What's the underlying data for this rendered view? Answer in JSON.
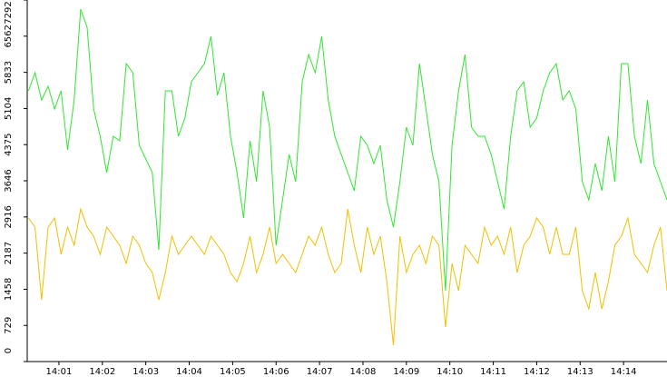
{
  "chart_data": {
    "type": "line",
    "x": [
      0.3,
      0.45,
      0.6,
      0.75,
      0.9,
      1.05,
      1.2,
      1.35,
      1.5,
      1.65,
      1.8,
      1.95,
      2.1,
      2.25,
      2.4,
      2.55,
      2.7,
      2.85,
      3.0,
      3.15,
      3.3,
      3.45,
      3.6,
      3.75,
      3.9,
      4.05,
      4.2,
      4.35,
      4.5,
      4.65,
      4.8,
      4.95,
      5.1,
      5.25,
      5.4,
      5.55,
      5.7,
      5.85,
      6.0,
      6.15,
      6.3,
      6.45,
      6.6,
      6.75,
      6.9,
      7.05,
      7.2,
      7.35,
      7.5,
      7.65,
      7.8,
      7.95,
      8.1,
      8.25,
      8.4,
      8.55,
      8.7,
      8.85,
      9.0,
      9.15,
      9.3,
      9.45,
      9.6,
      9.75,
      9.9,
      10.05,
      10.2,
      10.35,
      10.5,
      10.65,
      10.8,
      10.95,
      11.1,
      11.25,
      11.4,
      11.55,
      11.7,
      11.85,
      12.0,
      12.15,
      12.3,
      12.45,
      12.6,
      12.75,
      12.9,
      13.05,
      13.2,
      13.35,
      13.5,
      13.65,
      13.8,
      13.95,
      14.1,
      14.25,
      14.4,
      14.55,
      14.7,
      14.85,
      15.0
    ],
    "series": [
      {
        "color": "#2ee82e",
        "values": [
          5459,
          5826,
          5276,
          5551,
          5093,
          5459,
          4269,
          5276,
          7108,
          6742,
          5093,
          4543,
          3810,
          4543,
          4452,
          6009,
          5826,
          4360,
          4085,
          3810,
          2253,
          5459,
          5459,
          4543,
          4910,
          5643,
          5826,
          6009,
          6559,
          5368,
          5826,
          4543,
          3810,
          2895,
          4452,
          3627,
          5459,
          4727,
          2345,
          3261,
          4177,
          3627,
          5643,
          6192,
          5826,
          6559,
          5276,
          4543,
          4177,
          3810,
          3444,
          4543,
          4360,
          3994,
          4360,
          3261,
          2711,
          3627,
          4727,
          4360,
          6009,
          5093,
          4177,
          3627,
          1429,
          4360,
          5459,
          6192,
          4727,
          4543,
          4543,
          4177,
          3627,
          3078,
          4543,
          5459,
          5643,
          4727,
          4910,
          5459,
          5826,
          6009,
          5276,
          5459,
          5093,
          3627,
          3261,
          3994,
          3444,
          4543,
          3627,
          6009,
          6009,
          4543,
          3994,
          5276,
          3994,
          3627,
          3261
        ]
      },
      {
        "color": "#f0c000",
        "values": [
          2895,
          2711,
          1246,
          2711,
          2895,
          2162,
          2711,
          2345,
          3078,
          2711,
          2528,
          2162,
          2711,
          2528,
          2345,
          1979,
          2528,
          2345,
          1979,
          1795,
          1246,
          1795,
          2528,
          2162,
          2345,
          2528,
          2345,
          2162,
          2528,
          2345,
          2162,
          1795,
          1612,
          1979,
          2528,
          1795,
          2162,
          2711,
          1979,
          2162,
          1979,
          1795,
          2162,
          2528,
          2345,
          2711,
          2162,
          1795,
          1979,
          3078,
          2345,
          1795,
          2711,
          2162,
          2528,
          1612,
          330,
          2528,
          1795,
          2162,
          2345,
          1979,
          2528,
          2345,
          696,
          1979,
          1429,
          2345,
          2162,
          1979,
          2711,
          2345,
          2528,
          2162,
          2711,
          1795,
          2345,
          2528,
          2895,
          2711,
          2162,
          2711,
          2162,
          2162,
          2711,
          1429,
          1063,
          1795,
          1063,
          1612,
          2345,
          2528,
          2895,
          2162,
          1979,
          1795,
          2345,
          2711,
          1429
        ]
      }
    ],
    "xlim": [
      0.27,
      15.0
    ],
    "xticks": [
      {
        "value": 1,
        "label": "14:01"
      },
      {
        "value": 2,
        "label": "14:02"
      },
      {
        "value": 3,
        "label": "14:03"
      },
      {
        "value": 4,
        "label": "14:04"
      },
      {
        "value": 5,
        "label": "14:05"
      },
      {
        "value": 6,
        "label": "14:06"
      },
      {
        "value": 7,
        "label": "14:07"
      },
      {
        "value": 8,
        "label": "14:08"
      },
      {
        "value": 9,
        "label": "14:09"
      },
      {
        "value": 10,
        "label": "14:10"
      },
      {
        "value": 11,
        "label": "14:11"
      },
      {
        "value": 12,
        "label": "14:12"
      },
      {
        "value": 13,
        "label": "14:13"
      },
      {
        "value": 14,
        "label": "14:14"
      }
    ],
    "ylim": [
      0,
      7292
    ],
    "yticks": [
      0,
      729,
      1458,
      2187,
      2916,
      3646,
      4375,
      5104,
      5833,
      6562,
      7292
    ]
  }
}
